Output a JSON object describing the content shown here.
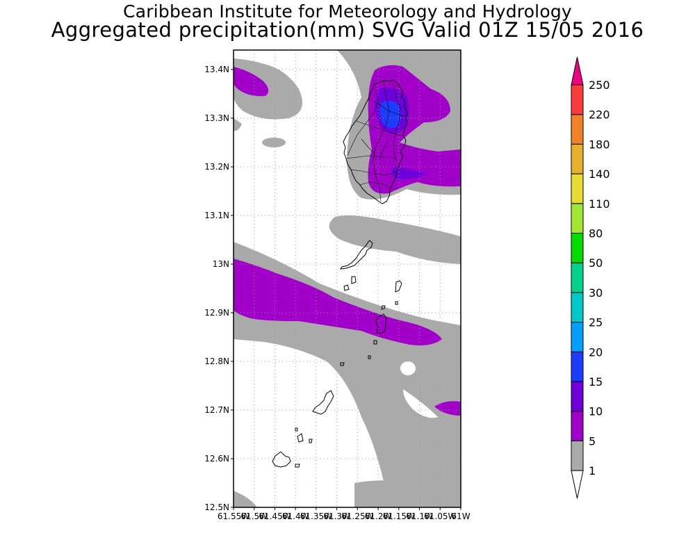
{
  "header": {
    "title": "Caribbean Institute for Meteorology and Hydrology",
    "subtitle": "Aggregated precipitation(mm) SVG Valid 01Z 15/05 2016"
  },
  "map": {
    "lon_range": [
      -61.55,
      -61.0
    ],
    "lat_range": [
      12.5,
      13.44
    ],
    "lat_ticks": [
      {
        "value": 13.4,
        "label": "13.4N"
      },
      {
        "value": 13.3,
        "label": "13.3N"
      },
      {
        "value": 13.2,
        "label": "13.2N"
      },
      {
        "value": 13.1,
        "label": "13.1N"
      },
      {
        "value": 13.0,
        "label": "13N"
      },
      {
        "value": 12.9,
        "label": "12.9N"
      },
      {
        "value": 12.8,
        "label": "12.8N"
      },
      {
        "value": 12.7,
        "label": "12.7N"
      },
      {
        "value": 12.6,
        "label": "12.6N"
      },
      {
        "value": 12.5,
        "label": "12.5N"
      }
    ],
    "lon_ticks": [
      {
        "value": -61.55,
        "label": "61.55W"
      },
      {
        "value": -61.5,
        "label": "61.5W"
      },
      {
        "value": -61.45,
        "label": "61.45W"
      },
      {
        "value": -61.4,
        "label": "61.4W"
      },
      {
        "value": -61.35,
        "label": "61.35W"
      },
      {
        "value": -61.3,
        "label": "61.3W"
      },
      {
        "value": -61.25,
        "label": "61.25W"
      },
      {
        "value": -61.2,
        "label": "61.2W"
      },
      {
        "value": -61.15,
        "label": "61.15W"
      },
      {
        "value": -61.1,
        "label": "61.1W"
      },
      {
        "value": -61.05,
        "label": "61.05W"
      },
      {
        "value": -61.0,
        "label": "61W"
      }
    ],
    "grid": true,
    "colors": {
      "1_5": "#aaaaaa",
      "5_10": "#a000c8",
      "10_15": "#6e00dc",
      "15_20": "#1e3cff",
      "coast": "#000000"
    }
  },
  "colorbar": {
    "levels": [
      {
        "value": "1",
        "color": "#aaaaaa"
      },
      {
        "value": "5",
        "color": "#a000c8"
      },
      {
        "value": "10",
        "color": "#6e00dc"
      },
      {
        "value": "15",
        "color": "#1e3cff"
      },
      {
        "value": "20",
        "color": "#00a0ff"
      },
      {
        "value": "25",
        "color": "#00c8c8"
      },
      {
        "value": "30",
        "color": "#00d28c"
      },
      {
        "value": "50",
        "color": "#00dc00"
      },
      {
        "value": "80",
        "color": "#a0e632"
      },
      {
        "value": "110",
        "color": "#e6dc32"
      },
      {
        "value": "140",
        "color": "#e6af2d"
      },
      {
        "value": "180",
        "color": "#f08228"
      },
      {
        "value": "220",
        "color": "#fa3c3c"
      },
      {
        "value": "250",
        "color": "#f00082"
      }
    ],
    "under_color": "#ffffff",
    "over_color": "#f00082"
  }
}
